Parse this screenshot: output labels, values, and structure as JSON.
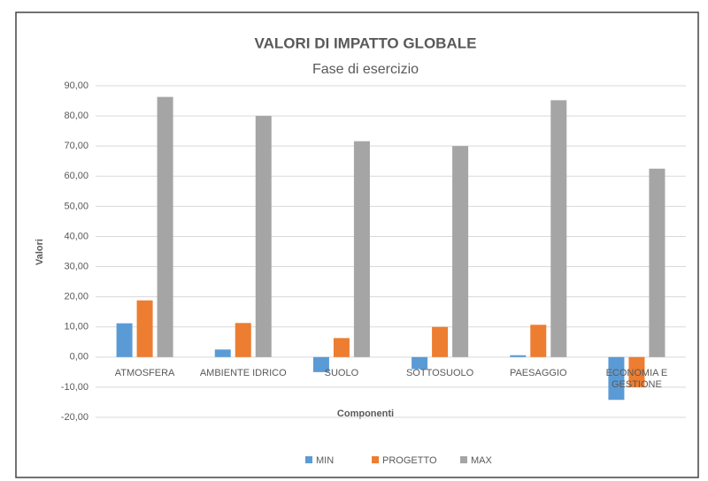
{
  "chart_data": {
    "type": "bar",
    "title": "VALORI DI IMPATTO GLOBALE",
    "subtitle": "Fase di esercizio",
    "y_label": "Valori",
    "x_label": "Componenti",
    "categories": [
      "ATMOSFERA",
      "AMBIENTE IDRICO",
      "SUOLO",
      "SOTTOSUOLO",
      "PAESAGGIO",
      "ECONOMIA E GESTIONE"
    ],
    "series": [
      {
        "name": "MIN",
        "color": "#5b9bd5",
        "values": [
          11.2,
          2.5,
          -5,
          -4,
          0.6,
          -14.2
        ]
      },
      {
        "name": "PROGETTO",
        "color": "#ed7d31",
        "values": [
          18.8,
          11.3,
          6.3,
          10,
          10.7,
          -10
        ]
      },
      {
        "name": "MAX",
        "color": "#a5a5a5",
        "values": [
          86.3,
          80,
          71.6,
          70,
          85.2,
          62.5
        ]
      }
    ],
    "ylim": [
      -20,
      90
    ],
    "yticks": [
      {
        "value": -20,
        "label": "-20,00"
      },
      {
        "value": -10,
        "label": "-10,00"
      },
      {
        "value": 0,
        "label": "0,00"
      },
      {
        "value": 10,
        "label": "10,00"
      },
      {
        "value": 20,
        "label": "20,00"
      },
      {
        "value": 30,
        "label": "30,00"
      },
      {
        "value": 40,
        "label": "40,00"
      },
      {
        "value": 50,
        "label": "50,00"
      },
      {
        "value": 60,
        "label": "60,00"
      },
      {
        "value": 70,
        "label": "70,00"
      },
      {
        "value": 80,
        "label": "80,00"
      },
      {
        "value": 90,
        "label": "90,00"
      }
    ],
    "grid": true,
    "legend": "bottom"
  }
}
